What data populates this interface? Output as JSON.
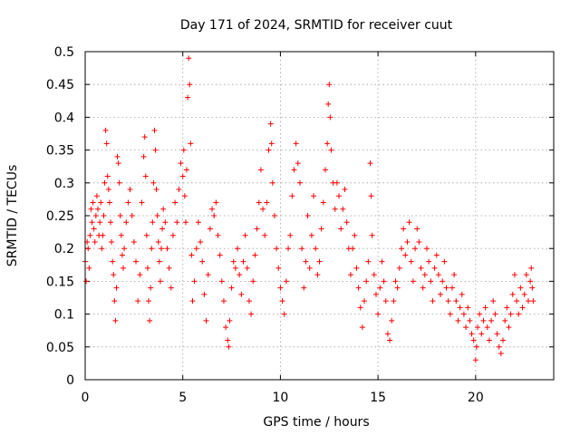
{
  "chart_data": {
    "type": "scatter",
    "title": "Day 171 of 2024, SRMTID for receiver cuut",
    "xlabel": "GPS time / hours",
    "ylabel": "SRMTID / TECUs",
    "xlim": [
      0,
      24
    ],
    "ylim": [
      0,
      0.5
    ],
    "xticks": [
      {
        "value": 0,
        "label": "0"
      },
      {
        "value": 5,
        "label": "5"
      },
      {
        "value": 10,
        "label": "10"
      },
      {
        "value": 15,
        "label": "15"
      },
      {
        "value": 20,
        "label": "20"
      }
    ],
    "yticks": [
      {
        "value": 0,
        "label": "0"
      },
      {
        "value": 0.05,
        "label": "0.05"
      },
      {
        "value": 0.1,
        "label": "0.1"
      },
      {
        "value": 0.15,
        "label": "0.15"
      },
      {
        "value": 0.2,
        "label": "0.2"
      },
      {
        "value": 0.25,
        "label": "0.25"
      },
      {
        "value": 0.3,
        "label": "0.3"
      },
      {
        "value": 0.35,
        "label": "0.35"
      },
      {
        "value": 0.4,
        "label": "0.4"
      },
      {
        "value": 0.45,
        "label": "0.45"
      },
      {
        "value": 0.5,
        "label": "0.5"
      }
    ],
    "grid": true,
    "marker": "plus",
    "marker_color": "#ff0000",
    "x_range_observed": [
      0,
      23
    ],
    "series": [
      {
        "name": "SRMTID",
        "color": "#ff0000",
        "note": "dense cloud of points; representative values estimated from figure",
        "points": [
          [
            0.0,
            0.18
          ],
          [
            0.05,
            0.15
          ],
          [
            0.1,
            0.21
          ],
          [
            0.15,
            0.2
          ],
          [
            0.2,
            0.17
          ],
          [
            0.25,
            0.22
          ],
          [
            0.3,
            0.26
          ],
          [
            0.35,
            0.24
          ],
          [
            0.4,
            0.27
          ],
          [
            0.45,
            0.23
          ],
          [
            0.5,
            0.21
          ],
          [
            0.55,
            0.25
          ],
          [
            0.6,
            0.28
          ],
          [
            0.65,
            0.26
          ],
          [
            0.7,
            0.22
          ],
          [
            0.75,
            0.24
          ],
          [
            0.8,
            0.27
          ],
          [
            0.85,
            0.2
          ],
          [
            0.9,
            0.22
          ],
          [
            0.95,
            0.25
          ],
          [
            1.0,
            0.3
          ],
          [
            1.05,
            0.38
          ],
          [
            1.1,
            0.36
          ],
          [
            1.15,
            0.31
          ],
          [
            1.2,
            0.29
          ],
          [
            1.25,
            0.27
          ],
          [
            1.3,
            0.24
          ],
          [
            1.35,
            0.21
          ],
          [
            1.4,
            0.18
          ],
          [
            1.45,
            0.16
          ],
          [
            1.5,
            0.12
          ],
          [
            1.55,
            0.09
          ],
          [
            1.6,
            0.14
          ],
          [
            1.65,
            0.34
          ],
          [
            1.7,
            0.33
          ],
          [
            1.75,
            0.3
          ],
          [
            1.8,
            0.25
          ],
          [
            1.85,
            0.22
          ],
          [
            1.9,
            0.19
          ],
          [
            1.95,
            0.17
          ],
          [
            2.0,
            0.2
          ],
          [
            2.1,
            0.24
          ],
          [
            2.2,
            0.27
          ],
          [
            2.3,
            0.29
          ],
          [
            2.4,
            0.25
          ],
          [
            2.5,
            0.21
          ],
          [
            2.6,
            0.18
          ],
          [
            2.7,
            0.12
          ],
          [
            2.8,
            0.16
          ],
          [
            2.9,
            0.27
          ],
          [
            3.0,
            0.34
          ],
          [
            3.05,
            0.37
          ],
          [
            3.1,
            0.31
          ],
          [
            3.15,
            0.22
          ],
          [
            3.2,
            0.17
          ],
          [
            3.25,
            0.12
          ],
          [
            3.3,
            0.09
          ],
          [
            3.35,
            0.14
          ],
          [
            3.4,
            0.2
          ],
          [
            3.45,
            0.24
          ],
          [
            3.5,
            0.3
          ],
          [
            3.55,
            0.38
          ],
          [
            3.6,
            0.35
          ],
          [
            3.65,
            0.29
          ],
          [
            3.7,
            0.25
          ],
          [
            3.75,
            0.21
          ],
          [
            3.8,
            0.18
          ],
          [
            3.85,
            0.15
          ],
          [
            3.9,
            0.2
          ],
          [
            3.95,
            0.23
          ],
          [
            4.0,
            0.26
          ],
          [
            4.1,
            0.24
          ],
          [
            4.2,
            0.2
          ],
          [
            4.3,
            0.17
          ],
          [
            4.4,
            0.14
          ],
          [
            4.5,
            0.22
          ],
          [
            4.6,
            0.27
          ],
          [
            4.7,
            0.24
          ],
          [
            4.8,
            0.29
          ],
          [
            4.9,
            0.33
          ],
          [
            5.0,
            0.31
          ],
          [
            5.05,
            0.35
          ],
          [
            5.1,
            0.28
          ],
          [
            5.15,
            0.24
          ],
          [
            5.2,
            0.32
          ],
          [
            5.25,
            0.43
          ],
          [
            5.3,
            0.49
          ],
          [
            5.35,
            0.45
          ],
          [
            5.4,
            0.36
          ],
          [
            5.45,
            0.19
          ],
          [
            5.5,
            0.12
          ],
          [
            5.6,
            0.15
          ],
          [
            5.7,
            0.2
          ],
          [
            5.8,
            0.24
          ],
          [
            5.9,
            0.21
          ],
          [
            6.0,
            0.18
          ],
          [
            6.1,
            0.13
          ],
          [
            6.2,
            0.09
          ],
          [
            6.3,
            0.16
          ],
          [
            6.4,
            0.23
          ],
          [
            6.5,
            0.26
          ],
          [
            6.6,
            0.25
          ],
          [
            6.7,
            0.27
          ],
          [
            6.8,
            0.22
          ],
          [
            6.9,
            0.19
          ],
          [
            7.0,
            0.15
          ],
          [
            7.1,
            0.12
          ],
          [
            7.2,
            0.08
          ],
          [
            7.3,
            0.06
          ],
          [
            7.35,
            0.05
          ],
          [
            7.4,
            0.09
          ],
          [
            7.5,
            0.14
          ],
          [
            7.6,
            0.18
          ],
          [
            7.7,
            0.17
          ],
          [
            7.8,
            0.2
          ],
          [
            7.9,
            0.16
          ],
          [
            8.0,
            0.13
          ],
          [
            8.1,
            0.18
          ],
          [
            8.2,
            0.22
          ],
          [
            8.3,
            0.17
          ],
          [
            8.4,
            0.12
          ],
          [
            8.5,
            0.1
          ],
          [
            8.6,
            0.15
          ],
          [
            8.7,
            0.19
          ],
          [
            8.8,
            0.23
          ],
          [
            8.9,
            0.27
          ],
          [
            9.0,
            0.32
          ],
          [
            9.1,
            0.26
          ],
          [
            9.2,
            0.22
          ],
          [
            9.3,
            0.27
          ],
          [
            9.4,
            0.35
          ],
          [
            9.5,
            0.39
          ],
          [
            9.55,
            0.36
          ],
          [
            9.6,
            0.3
          ],
          [
            9.7,
            0.25
          ],
          [
            9.8,
            0.2
          ],
          [
            9.9,
            0.17
          ],
          [
            10.0,
            0.14
          ],
          [
            10.1,
            0.12
          ],
          [
            10.2,
            0.1
          ],
          [
            10.3,
            0.15
          ],
          [
            10.4,
            0.2
          ],
          [
            10.5,
            0.22
          ],
          [
            10.6,
            0.28
          ],
          [
            10.7,
            0.32
          ],
          [
            10.8,
            0.36
          ],
          [
            10.9,
            0.33
          ],
          [
            11.0,
            0.3
          ],
          [
            11.1,
            0.2
          ],
          [
            11.2,
            0.14
          ],
          [
            11.3,
            0.18
          ],
          [
            11.4,
            0.25
          ],
          [
            11.5,
            0.17
          ],
          [
            11.6,
            0.22
          ],
          [
            11.7,
            0.28
          ],
          [
            11.8,
            0.2
          ],
          [
            11.9,
            0.16
          ],
          [
            12.0,
            0.18
          ],
          [
            12.1,
            0.23
          ],
          [
            12.2,
            0.27
          ],
          [
            12.3,
            0.32
          ],
          [
            12.4,
            0.36
          ],
          [
            12.45,
            0.42
          ],
          [
            12.5,
            0.45
          ],
          [
            12.55,
            0.4
          ],
          [
            12.6,
            0.35
          ],
          [
            12.7,
            0.3
          ],
          [
            12.8,
            0.26
          ],
          [
            12.9,
            0.3
          ],
          [
            13.0,
            0.28
          ],
          [
            13.1,
            0.23
          ],
          [
            13.2,
            0.26
          ],
          [
            13.3,
            0.29
          ],
          [
            13.4,
            0.24
          ],
          [
            13.5,
            0.2
          ],
          [
            13.6,
            0.16
          ],
          [
            13.7,
            0.2
          ],
          [
            13.8,
            0.22
          ],
          [
            13.9,
            0.17
          ],
          [
            14.0,
            0.14
          ],
          [
            14.1,
            0.11
          ],
          [
            14.2,
            0.08
          ],
          [
            14.3,
            0.12
          ],
          [
            14.4,
            0.15
          ],
          [
            14.5,
            0.18
          ],
          [
            14.6,
            0.33
          ],
          [
            14.65,
            0.28
          ],
          [
            14.7,
            0.22
          ],
          [
            14.8,
            0.16
          ],
          [
            14.9,
            0.13
          ],
          [
            15.0,
            0.1
          ],
          [
            15.1,
            0.14
          ],
          [
            15.2,
            0.18
          ],
          [
            15.3,
            0.15
          ],
          [
            15.4,
            0.12
          ],
          [
            15.5,
            0.07
          ],
          [
            15.6,
            0.06
          ],
          [
            15.7,
            0.09
          ],
          [
            15.8,
            0.12
          ],
          [
            15.9,
            0.15
          ],
          [
            16.0,
            0.14
          ],
          [
            16.1,
            0.17
          ],
          [
            16.2,
            0.2
          ],
          [
            16.3,
            0.23
          ],
          [
            16.4,
            0.19
          ],
          [
            16.5,
            0.21
          ],
          [
            16.6,
            0.24
          ],
          [
            16.7,
            0.18
          ],
          [
            16.8,
            0.15
          ],
          [
            16.9,
            0.2
          ],
          [
            17.0,
            0.23
          ],
          [
            17.1,
            0.21
          ],
          [
            17.2,
            0.17
          ],
          [
            17.3,
            0.14
          ],
          [
            17.4,
            0.16
          ],
          [
            17.5,
            0.2
          ],
          [
            17.6,
            0.18
          ],
          [
            17.7,
            0.15
          ],
          [
            17.8,
            0.12
          ],
          [
            17.9,
            0.17
          ],
          [
            18.0,
            0.19
          ],
          [
            18.1,
            0.16
          ],
          [
            18.2,
            0.13
          ],
          [
            18.3,
            0.15
          ],
          [
            18.4,
            0.18
          ],
          [
            18.5,
            0.14
          ],
          [
            18.6,
            0.12
          ],
          [
            18.7,
            0.1
          ],
          [
            18.8,
            0.14
          ],
          [
            18.9,
            0.16
          ],
          [
            19.0,
            0.12
          ],
          [
            19.1,
            0.09
          ],
          [
            19.2,
            0.11
          ],
          [
            19.3,
            0.13
          ],
          [
            19.4,
            0.1
          ],
          [
            19.5,
            0.08
          ],
          [
            19.6,
            0.11
          ],
          [
            19.7,
            0.09
          ],
          [
            19.8,
            0.07
          ],
          [
            19.9,
            0.06
          ],
          [
            20.0,
            0.03
          ],
          [
            20.05,
            0.05
          ],
          [
            20.1,
            0.08
          ],
          [
            20.2,
            0.1
          ],
          [
            20.3,
            0.07
          ],
          [
            20.4,
            0.09
          ],
          [
            20.5,
            0.11
          ],
          [
            20.6,
            0.08
          ],
          [
            20.7,
            0.06
          ],
          [
            20.8,
            0.09
          ],
          [
            20.9,
            0.12
          ],
          [
            21.0,
            0.1
          ],
          [
            21.1,
            0.07
          ],
          [
            21.2,
            0.05
          ],
          [
            21.3,
            0.04
          ],
          [
            21.4,
            0.06
          ],
          [
            21.5,
            0.09
          ],
          [
            21.6,
            0.11
          ],
          [
            21.7,
            0.08
          ],
          [
            21.8,
            0.1
          ],
          [
            21.9,
            0.13
          ],
          [
            22.0,
            0.16
          ],
          [
            22.1,
            0.12
          ],
          [
            22.2,
            0.1
          ],
          [
            22.3,
            0.14
          ],
          [
            22.4,
            0.11
          ],
          [
            22.5,
            0.13
          ],
          [
            22.6,
            0.16
          ],
          [
            22.7,
            0.12
          ],
          [
            22.8,
            0.15
          ],
          [
            22.85,
            0.17
          ],
          [
            22.9,
            0.14
          ],
          [
            22.95,
            0.12
          ]
        ]
      }
    ]
  }
}
